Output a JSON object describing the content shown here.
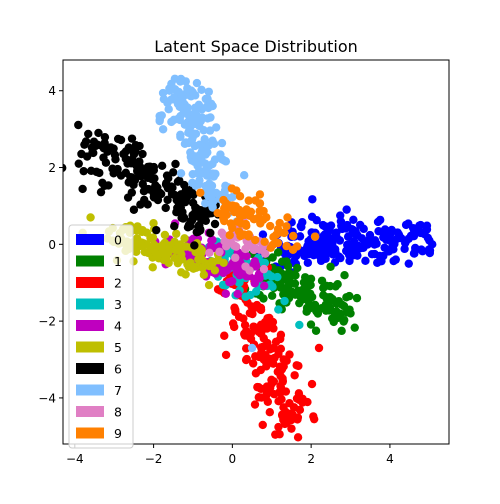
{
  "chart_data": {
    "type": "scatter",
    "title": "Latent Space Distribution",
    "xlabel": "",
    "ylabel": "",
    "xlim": [
      -4.3,
      5.5
    ],
    "ylim": [
      -5.2,
      4.8
    ],
    "xticks": [
      -4,
      -2,
      0,
      2,
      4
    ],
    "yticks": [
      -4,
      -2,
      0,
      2,
      4
    ],
    "grid": false,
    "legend": {
      "placement": "left",
      "labels": [
        "0",
        "1",
        "2",
        "3",
        "4",
        "5",
        "6",
        "7",
        "8",
        "9"
      ]
    },
    "series": [
      {
        "name": "0",
        "color": "#0000ff",
        "clusters": [
          {
            "from": [
              1.3,
              -0.1
            ],
            "to": [
              5.0,
              0.1
            ],
            "n": 150,
            "spread": 0.28
          },
          {
            "from": [
              1.1,
              -0.3
            ],
            "to": [
              3.2,
              0.4
            ],
            "n": 60,
            "spread": 0.3
          }
        ],
        "points": [
          [
            2.1,
            0.3
          ],
          [
            2.3,
            0.5
          ],
          [
            4.8,
            0.3
          ],
          [
            5.0,
            0.1
          ]
        ]
      },
      {
        "name": "1",
        "color": "#008000",
        "clusters": [
          {
            "from": [
              0.5,
              -0.5
            ],
            "to": [
              2.8,
              -1.8
            ],
            "n": 140,
            "spread": 0.28
          }
        ],
        "points": [
          [
            3.0,
            -1.8
          ]
        ]
      },
      {
        "name": "2",
        "color": "#ff0000",
        "clusters": [
          {
            "from": [
              0.0,
              -0.8
            ],
            "to": [
              1.5,
              -4.6
            ],
            "n": 170,
            "spread": 0.3
          }
        ],
        "points": [
          [
            2.2,
            -2.7
          ],
          [
            0.3,
            -1.1
          ],
          [
            0.9,
            -0.6
          ],
          [
            1.5,
            -4.8
          ],
          [
            0.9,
            -4.1
          ]
        ]
      },
      {
        "name": "3",
        "color": "#00bfbf",
        "clusters": [
          {
            "from": [
              -0.5,
              -0.3
            ],
            "to": [
              0.9,
              -1.0
            ],
            "n": 70,
            "spread": 0.25
          }
        ],
        "points": [
          [
            1.7,
            -2.1
          ]
        ]
      },
      {
        "name": "4",
        "color": "#bf00bf",
        "clusters": [
          {
            "from": [
              -1.5,
              0.0
            ],
            "to": [
              0.4,
              -0.8
            ],
            "n": 90,
            "spread": 0.25
          }
        ],
        "points": [
          [
            -0.6,
            0.3
          ],
          [
            0.1,
            -0.5
          ]
        ]
      },
      {
        "name": "5",
        "color": "#bfbf00",
        "clusters": [
          {
            "from": [
              -3.0,
              0.2
            ],
            "to": [
              -0.5,
              -0.5
            ],
            "n": 120,
            "spread": 0.25
          }
        ],
        "points": [
          [
            -3.6,
            0.7
          ],
          [
            -3.8,
            0.3
          ],
          [
            -2.6,
            0.3
          ]
        ]
      },
      {
        "name": "6",
        "color": "#000000",
        "clusters": [
          {
            "from": [
              -3.6,
              2.6
            ],
            "to": [
              -0.6,
              0.6
            ],
            "n": 190,
            "spread": 0.3
          }
        ],
        "points": [
          [
            -3.4,
            2.9
          ],
          [
            -3.9,
            2.1
          ],
          [
            -3.3,
            1.6
          ],
          [
            -2.5,
            0.9
          ],
          [
            -0.1,
            0.9
          ]
        ]
      },
      {
        "name": "7",
        "color": "#80bfff",
        "clusters": [
          {
            "from": [
              -1.4,
              4.1
            ],
            "to": [
              -0.3,
              1.0
            ],
            "n": 180,
            "spread": 0.28
          }
        ],
        "points": [
          [
            -1.3,
            4.3
          ],
          [
            -0.9,
            4.2
          ],
          [
            -0.5,
            3.6
          ],
          [
            0.3,
            1.8
          ],
          [
            0.5,
            -2.7
          ],
          [
            2.1,
            0.2
          ]
        ]
      },
      {
        "name": "8",
        "color": "#e07fc4",
        "clusters": [
          {
            "from": [
              -0.3,
              0.3
            ],
            "to": [
              0.6,
              -0.3
            ],
            "n": 40,
            "spread": 0.22
          }
        ],
        "points": [
          [
            0.4,
            0.8
          ]
        ]
      },
      {
        "name": "9",
        "color": "#ff8000",
        "clusters": [
          {
            "from": [
              -0.1,
              0.9
            ],
            "to": [
              1.2,
              0.2
            ],
            "n": 70,
            "spread": 0.28
          }
        ],
        "points": [
          [
            0.1,
            1.4
          ],
          [
            0.7,
            1.3
          ],
          [
            2.1,
            0.2
          ],
          [
            1.4,
            0.7
          ]
        ]
      }
    ]
  }
}
